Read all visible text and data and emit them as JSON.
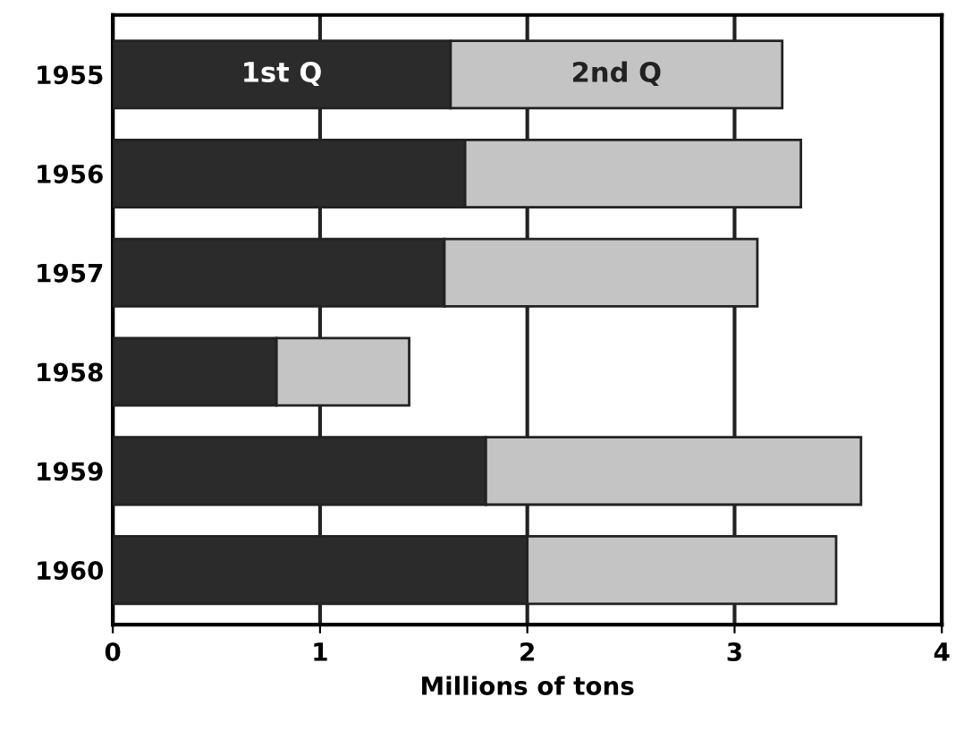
{
  "chart_data": {
    "type": "bar",
    "orientation": "horizontal",
    "stacked": true,
    "categories": [
      "1955",
      "1956",
      "1957",
      "1958",
      "1959",
      "1960"
    ],
    "series": [
      {
        "name": "1st Q",
        "color": "#2b2b2b",
        "values": [
          1.63,
          1.7,
          1.6,
          0.79,
          1.8,
          2.0
        ]
      },
      {
        "name": "2nd Q",
        "color": "#c4c4c4",
        "values": [
          1.6,
          1.62,
          1.51,
          0.64,
          1.81,
          1.49
        ]
      }
    ],
    "xlabel": "Millions of tons",
    "xlim": [
      0,
      4
    ],
    "xticks": [
      0,
      1,
      2,
      3,
      4
    ],
    "grid": "x",
    "legend": false
  }
}
